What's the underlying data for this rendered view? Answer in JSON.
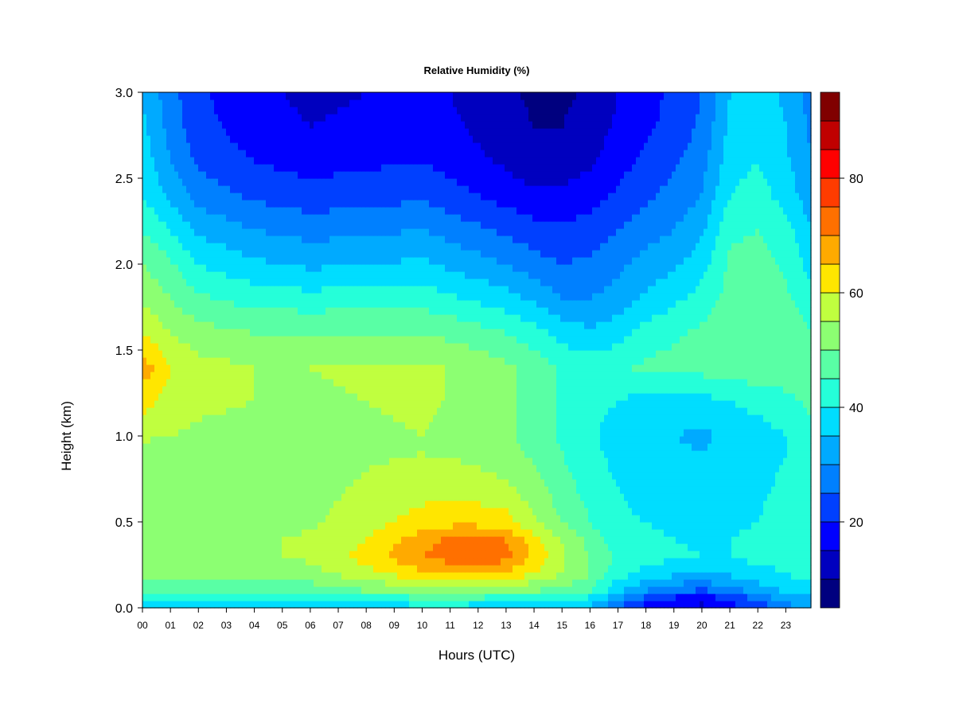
{
  "chart_data": {
    "type": "heatmap",
    "title": "Relative Humidity (%)",
    "xlabel": "Hours (UTC)",
    "ylabel": "Height (km)",
    "xlim": [
      0,
      23.9
    ],
    "ylim": [
      0.0,
      3.0
    ],
    "x_ticks": [
      "00",
      "01",
      "02",
      "03",
      "04",
      "05",
      "06",
      "07",
      "08",
      "09",
      "10",
      "11",
      "12",
      "13",
      "14",
      "15",
      "16",
      "17",
      "18",
      "19",
      "20",
      "21",
      "22",
      "23"
    ],
    "y_ticks": [
      "0.0",
      "0.5",
      "1.0",
      "1.5",
      "2.0",
      "2.5",
      "3.0"
    ],
    "colorbar": {
      "range": [
        5,
        95
      ],
      "ticks": [
        "20",
        "40",
        "60",
        "80"
      ],
      "tick_values": [
        20,
        40,
        60,
        80
      ],
      "colors": [
        "#00007F",
        "#0000BF",
        "#0000FF",
        "#0040FF",
        "#0080FF",
        "#00AAFF",
        "#00DDFF",
        "#25FFD9",
        "#59FFA5",
        "#8CFF72",
        "#C0FF3F",
        "#FFE600",
        "#FFAA00",
        "#FF7000",
        "#FF3C00",
        "#FF0000",
        "#C00000",
        "#800000"
      ]
    },
    "x": [
      0,
      1,
      2,
      4,
      6,
      8,
      10,
      11.5,
      13,
      14,
      15,
      16,
      17,
      18,
      19,
      20,
      21,
      22,
      23,
      23.9
    ],
    "y": [
      0.0,
      0.05,
      0.1,
      0.2,
      0.3,
      0.4,
      0.5,
      0.7,
      0.9,
      1.0,
      1.2,
      1.4,
      1.6,
      1.8,
      2.0,
      2.2,
      2.4,
      2.6,
      2.8,
      3.0
    ],
    "z": [
      [
        35,
        35,
        35,
        35,
        36,
        38,
        38,
        38,
        37,
        36,
        35,
        33,
        25,
        18,
        15,
        14,
        18,
        22,
        28,
        30
      ],
      [
        40,
        40,
        40,
        40,
        40,
        42,
        43,
        43,
        42,
        41,
        40,
        38,
        30,
        22,
        18,
        16,
        20,
        25,
        32,
        34
      ],
      [
        47,
        47,
        46,
        46,
        47,
        50,
        52,
        53,
        52,
        50,
        48,
        45,
        36,
        30,
        26,
        24,
        28,
        32,
        36,
        38
      ],
      [
        52,
        52,
        51,
        51,
        53,
        58,
        64,
        66,
        64,
        60,
        55,
        50,
        42,
        38,
        36,
        35,
        36,
        38,
        40,
        42
      ],
      [
        55,
        55,
        54,
        54,
        56,
        62,
        70,
        74,
        72,
        64,
        56,
        50,
        44,
        42,
        41,
        40,
        40,
        42,
        42,
        44
      ],
      [
        54,
        55,
        54,
        54,
        56,
        60,
        68,
        72,
        70,
        62,
        55,
        48,
        42,
        41,
        40,
        39,
        40,
        41,
        42,
        44
      ],
      [
        54,
        54,
        53,
        52,
        54,
        58,
        62,
        64,
        62,
        56,
        50,
        45,
        41,
        40,
        39,
        38,
        39,
        40,
        42,
        44
      ],
      [
        53,
        54,
        53,
        52,
        53,
        56,
        58,
        58,
        56,
        52,
        47,
        43,
        40,
        38,
        38,
        38,
        38,
        39,
        41,
        44
      ],
      [
        52,
        53,
        52,
        51,
        52,
        54,
        55,
        54,
        52,
        49,
        45,
        42,
        38,
        37,
        36,
        35,
        37,
        38,
        40,
        43
      ],
      [
        56,
        55,
        54,
        53,
        52,
        54,
        55,
        53,
        51,
        48,
        44,
        41,
        37,
        36,
        35,
        34,
        36,
        37,
        40,
        43
      ],
      [
        62,
        58,
        56,
        55,
        54,
        55,
        56,
        54,
        51,
        48,
        44,
        42,
        40,
        38,
        38,
        38,
        40,
        42,
        44,
        46
      ],
      [
        68,
        60,
        57,
        55,
        55,
        56,
        56,
        54,
        51,
        48,
        44,
        43,
        44,
        46,
        47,
        47,
        48,
        48,
        47,
        46
      ],
      [
        60,
        55,
        52,
        50,
        50,
        50,
        50,
        48,
        45,
        42,
        38,
        36,
        38,
        42,
        44,
        46,
        48,
        50,
        48,
        45
      ],
      [
        54,
        50,
        46,
        43,
        42,
        43,
        43,
        40,
        37,
        34,
        30,
        30,
        32,
        36,
        39,
        42,
        47,
        48,
        46,
        42
      ],
      [
        50,
        46,
        40,
        36,
        34,
        35,
        36,
        33,
        30,
        27,
        25,
        26,
        29,
        32,
        34,
        38,
        46,
        47,
        44,
        38
      ],
      [
        45,
        40,
        34,
        30,
        28,
        29,
        30,
        27,
        24,
        22,
        21,
        22,
        25,
        28,
        30,
        34,
        44,
        45,
        42,
        35
      ],
      [
        40,
        34,
        28,
        24,
        22,
        23,
        24,
        21,
        18,
        16,
        16,
        18,
        21,
        24,
        27,
        30,
        40,
        42,
        38,
        32
      ],
      [
        38,
        30,
        24,
        20,
        18,
        19,
        20,
        17,
        14,
        12,
        12,
        14,
        18,
        21,
        24,
        28,
        38,
        40,
        36,
        30
      ],
      [
        36,
        28,
        22,
        17,
        15,
        16,
        18,
        15,
        12,
        10,
        10,
        12,
        16,
        19,
        22,
        26,
        36,
        38,
        35,
        29
      ],
      [
        35,
        27,
        21,
        16,
        14,
        15,
        17,
        14,
        11,
        9,
        9,
        11,
        15,
        18,
        21,
        25,
        35,
        37,
        34,
        28
      ]
    ]
  }
}
